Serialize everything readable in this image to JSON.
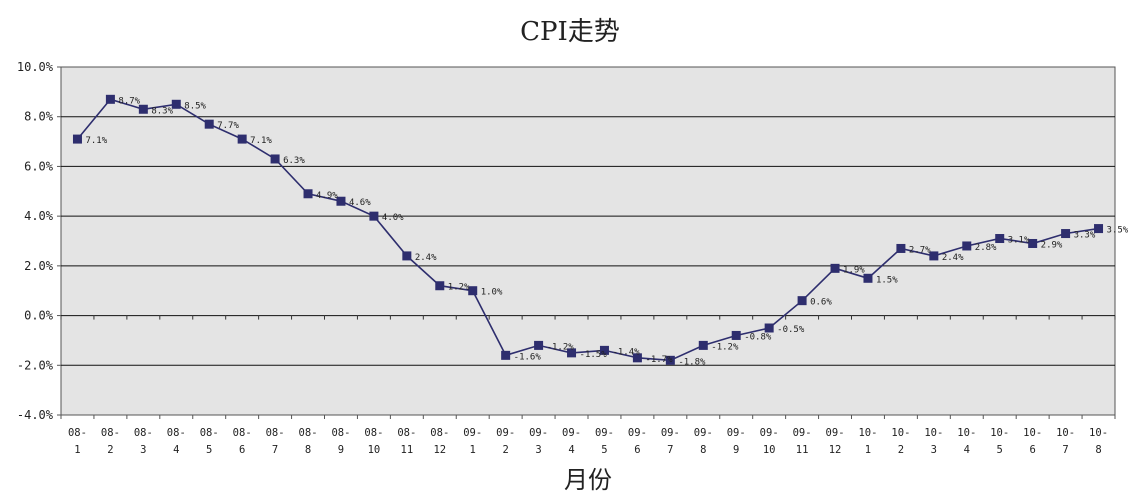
{
  "chart_data": {
    "type": "line",
    "title": "CPI走势",
    "xlabel": "月份",
    "ylabel": "",
    "ylim": [
      -4.0,
      10.0
    ],
    "y_ticks": [
      -4.0,
      -2.0,
      0.0,
      2.0,
      4.0,
      6.0,
      8.0,
      10.0
    ],
    "y_tick_labels": [
      "-4.0%",
      "-2.0%",
      "0.0%",
      "2.0%",
      "4.0%",
      "6.0%",
      "8.0%",
      "10.0%"
    ],
    "grid": true,
    "plot_background": "#e4e4e4",
    "line_color": "#2e2e6e",
    "marker_color": "#2e2e6e",
    "marker": "square",
    "categories": [
      {
        "year": "08-",
        "month": "1"
      },
      {
        "year": "08-",
        "month": "2"
      },
      {
        "year": "08-",
        "month": "3"
      },
      {
        "year": "08-",
        "month": "4"
      },
      {
        "year": "08-",
        "month": "5"
      },
      {
        "year": "08-",
        "month": "6"
      },
      {
        "year": "08-",
        "month": "7"
      },
      {
        "year": "08-",
        "month": "8"
      },
      {
        "year": "08-",
        "month": "9"
      },
      {
        "year": "08-",
        "month": "10"
      },
      {
        "year": "08-",
        "month": "11"
      },
      {
        "year": "08-",
        "month": "12"
      },
      {
        "year": "09-",
        "month": "1"
      },
      {
        "year": "09-",
        "month": "2"
      },
      {
        "year": "09-",
        "month": "3"
      },
      {
        "year": "09-",
        "month": "4"
      },
      {
        "year": "09-",
        "month": "5"
      },
      {
        "year": "09-",
        "month": "6"
      },
      {
        "year": "09-",
        "month": "7"
      },
      {
        "year": "09-",
        "month": "8"
      },
      {
        "year": "09-",
        "month": "9"
      },
      {
        "year": "09-",
        "month": "10"
      },
      {
        "year": "09-",
        "month": "11"
      },
      {
        "year": "09-",
        "month": "12"
      },
      {
        "year": "10-",
        "month": "1"
      },
      {
        "year": "10-",
        "month": "2"
      },
      {
        "year": "10-",
        "month": "3"
      },
      {
        "year": "10-",
        "month": "4"
      },
      {
        "year": "10-",
        "month": "5"
      },
      {
        "year": "10-",
        "month": "6"
      },
      {
        "year": "10-",
        "month": "7"
      },
      {
        "year": "10-",
        "month": "8"
      }
    ],
    "series": [
      {
        "values": [
          7.1,
          8.7,
          8.3,
          8.5,
          7.7,
          7.1,
          6.3,
          4.9,
          4.6,
          4.0,
          2.4,
          1.2,
          1.0,
          -1.6,
          -1.2,
          -1.5,
          -1.4,
          -1.7,
          -1.8,
          -1.2,
          -0.8,
          -0.5,
          0.6,
          1.9,
          1.5,
          2.7,
          2.4,
          2.8,
          3.1,
          2.9,
          3.3,
          3.5
        ],
        "labels": [
          "7.1%",
          "8.7%",
          "8.3%",
          "8.5%",
          "7.7%",
          "7.1%",
          "6.3%",
          "4.9%",
          "4.6%",
          "4.0%",
          "2.4%",
          "1.2%",
          "1.0%",
          "-1.6%",
          "-1.2%",
          "-1.5%",
          "-1.4%",
          "-1.7%",
          "-1.8%",
          "-1.2%",
          "-0.8%",
          "-0.5%",
          "0.6%",
          "1.9%",
          "1.5%",
          "2.7%",
          "2.4%",
          "2.8%",
          "3.1%",
          "2.9%",
          "3.3%",
          "3.5%"
        ]
      }
    ]
  }
}
